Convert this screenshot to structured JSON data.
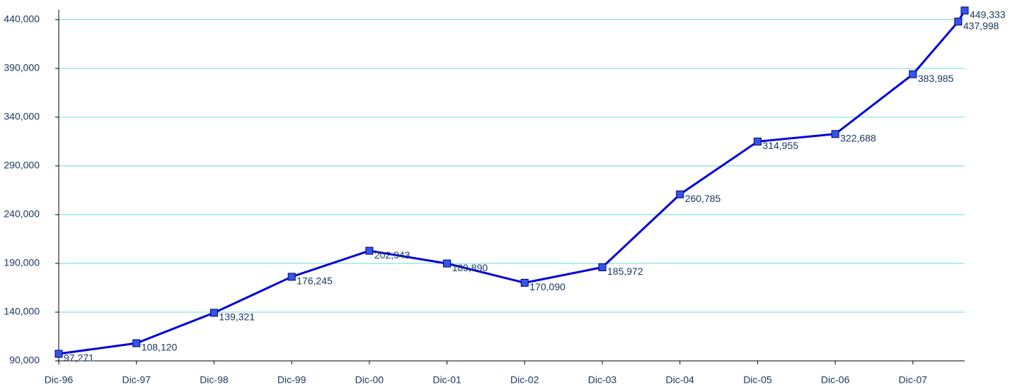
{
  "chart_data": {
    "type": "line",
    "x": [
      "1996-12",
      "1997-12",
      "1998-12",
      "1999-12",
      "2000-12",
      "2001-12",
      "2002-12",
      "2003-12",
      "2004-12",
      "2005-12",
      "2006-12",
      "2007-12",
      "2008-07",
      "2008-08"
    ],
    "series": [
      {
        "color": "#0000dd",
        "values": [
          97271,
          108120,
          139321,
          176245,
          202943,
          189890,
          170090,
          185972,
          260785,
          314955,
          322688,
          383985,
          437998,
          449333
        ],
        "value_labels": [
          "97,271",
          "108,120",
          "139,321",
          "176,245",
          "202,943",
          "189,890",
          "170,090",
          "185,972",
          "260,785",
          "314,955",
          "322,688",
          "383,985",
          "437,998",
          "449,333"
        ]
      }
    ],
    "xlim": [
      "1996-12",
      "2008-08"
    ],
    "xticks": [
      {
        "value": "1996-12",
        "label": "Dic-96"
      },
      {
        "value": "1997-12",
        "label": "Dic-97"
      },
      {
        "value": "1998-12",
        "label": "Dic-98"
      },
      {
        "value": "1999-12",
        "label": "Dic-99"
      },
      {
        "value": "2000-12",
        "label": "Dic-00"
      },
      {
        "value": "2001-12",
        "label": "Dic-01"
      },
      {
        "value": "2002-12",
        "label": "Dic-02"
      },
      {
        "value": "2003-12",
        "label": "Dic-03"
      },
      {
        "value": "2004-12",
        "label": "Dic-04"
      },
      {
        "value": "2005-12",
        "label": "Dic-05"
      },
      {
        "value": "2006-12",
        "label": "Dic-06"
      },
      {
        "value": "2007-12",
        "label": "Dic-07"
      }
    ],
    "ylim": [
      90000,
      450000
    ],
    "yticks": [
      {
        "value": 90000,
        "label": "90,000"
      },
      {
        "value": 140000,
        "label": "140,000"
      },
      {
        "value": 190000,
        "label": "190,000"
      },
      {
        "value": 240000,
        "label": "240,000"
      },
      {
        "value": 290000,
        "label": "290,000"
      },
      {
        "value": 340000,
        "label": "340,000"
      },
      {
        "value": 390000,
        "label": "390,000"
      },
      {
        "value": 440000,
        "label": "440,000"
      }
    ],
    "grid": true
  }
}
